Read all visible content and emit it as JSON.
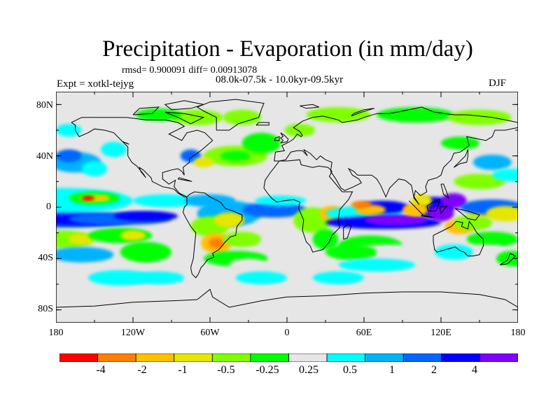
{
  "title": "Precipitation - Evaporation (in mm/day)",
  "stats": "rmsd= 0.900091 diff= 0.00913078",
  "period": "08.0k-07.5k - 10.0kyr-09.5kyr",
  "experiment": "Expt = xotkl-tejyg",
  "season": "DJF",
  "lat_labels": [
    "80N",
    "40N",
    "0",
    "40S",
    "80S"
  ],
  "lat_values": [
    80,
    40,
    0,
    -40,
    -80
  ],
  "lon_labels": [
    "180",
    "120W",
    "60W",
    "0",
    "60E",
    "120E",
    "180"
  ],
  "lon_values": [
    -180,
    -120,
    -60,
    0,
    60,
    120,
    180
  ],
  "lat_range": [
    -90,
    90
  ],
  "lon_range": [
    -180,
    180
  ],
  "background_color": "#e6e6e6",
  "colorbar": {
    "colors": [
      "#ff0000",
      "#ff8000",
      "#ffc000",
      "#e6e600",
      "#80ff00",
      "#00ff00",
      "#e6e6e6",
      "#00ffff",
      "#00b3ff",
      "#0066ff",
      "#0000ff",
      "#8000ff"
    ],
    "labels": [
      "-4",
      "-2",
      "-1",
      "-0.5",
      "-0.25",
      "0.25",
      "0.5",
      "1",
      "2",
      "4"
    ]
  }
}
